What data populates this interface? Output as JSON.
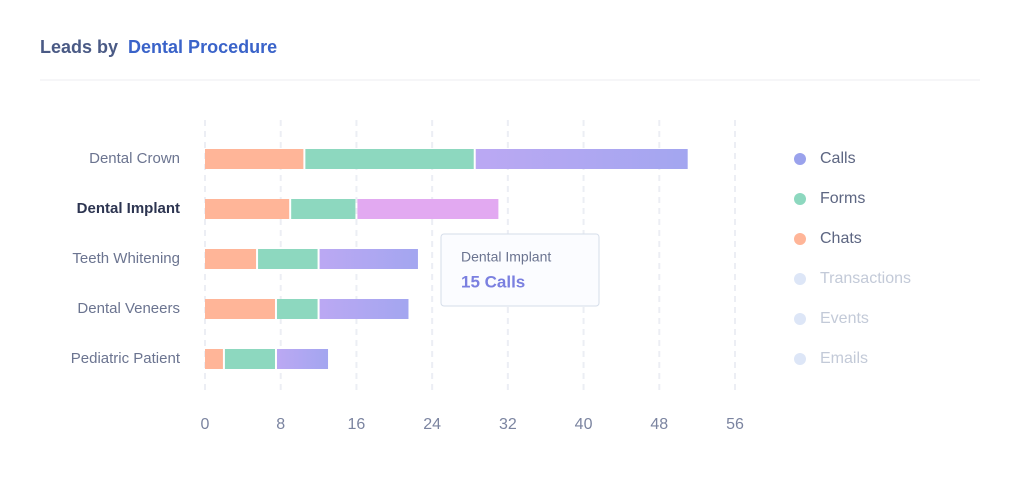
{
  "chart_data": {
    "type": "stacked-hbar",
    "title_parts": [
      "Leads by",
      "Dental Procedure"
    ],
    "categories": [
      "Dental Crown",
      "Dental Implant",
      "Teeth Whitening",
      "Dental Veneers",
      "Pediatric Patient"
    ],
    "series": [
      {
        "name": "Chats",
        "color": "#ffb598",
        "values": [
          10.5,
          9,
          5.5,
          7.5,
          2
        ]
      },
      {
        "name": "Forms",
        "color": "#8dd8bf",
        "values": [
          18,
          7,
          6.5,
          4.5,
          5.5
        ]
      },
      {
        "name": "Calls",
        "color": "#a3a6f0",
        "gradient_start": "#bba8f3",
        "highlight_color": "#e2a9f1",
        "legend_color": "#9aa2ec",
        "values": [
          22.5,
          15,
          10.5,
          9.5,
          5.5
        ]
      }
    ],
    "inactive_series": [
      "Transactions",
      "Events",
      "Emails"
    ],
    "highlight_category": 1,
    "tooltip": {
      "title": "Dental Implant",
      "text": "15 Calls"
    },
    "xlim": [
      0,
      56
    ],
    "xticks": [
      0,
      8,
      16,
      24,
      32,
      40,
      48,
      56
    ],
    "grid": true,
    "legend_position": "right"
  }
}
